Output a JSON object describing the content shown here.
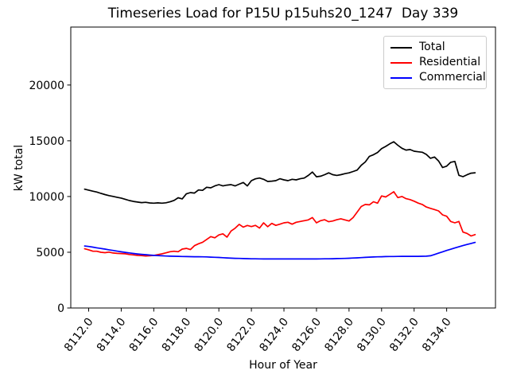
{
  "chart_data": {
    "type": "line",
    "title": "Timeseries Load for P15U p15uhs20_1247  Day 339",
    "xlabel": "Hour of Year",
    "ylabel": "kW total",
    "legend_position": "upper right",
    "grid": false,
    "xlim": [
      8110.9,
      8137.0
    ],
    "ylim": [
      0,
      25200
    ],
    "xticks": [
      8112,
      8114,
      8116,
      8118,
      8120,
      8122,
      8124,
      8126,
      8128,
      8130,
      8132,
      8134
    ],
    "xtick_labels": [
      "8112.0",
      "8114.0",
      "8116.0",
      "8118.0",
      "8120.0",
      "8122.0",
      "8124.0",
      "8126.0",
      "8128.0",
      "8130.0",
      "8132.0",
      "8134.0"
    ],
    "yticks": [
      0,
      5000,
      10000,
      15000,
      20000
    ],
    "ytick_labels": [
      "0",
      "5000",
      "10000",
      "15000",
      "20000"
    ],
    "x_start": 8111.75,
    "x_step": 0.25,
    "n_points": 97,
    "series": [
      {
        "name": "Total",
        "color": "#000000",
        "values": [
          10660,
          10570,
          10480,
          10400,
          10280,
          10170,
          10080,
          10010,
          9930,
          9860,
          9750,
          9640,
          9560,
          9500,
          9450,
          9480,
          9420,
          9400,
          9430,
          9400,
          9440,
          9520,
          9650,
          9890,
          9790,
          10240,
          10350,
          10310,
          10590,
          10550,
          10830,
          10780,
          10950,
          11065,
          10950,
          11020,
          11065,
          10950,
          11110,
          11255,
          10950,
          11420,
          11585,
          11660,
          11540,
          11350,
          11380,
          11420,
          11590,
          11490,
          11420,
          11540,
          11490,
          11590,
          11660,
          11890,
          12195,
          11770,
          11820,
          11960,
          12124,
          11960,
          11890,
          11960,
          12050,
          12120,
          12240,
          12370,
          12800,
          13100,
          13600,
          13750,
          13950,
          14300,
          14490,
          14720,
          14910,
          14600,
          14330,
          14160,
          14210,
          14060,
          14010,
          13970,
          13780,
          13430,
          13545,
          13190,
          12600,
          12720,
          13070,
          13150,
          11900,
          11780,
          11950,
          12090,
          12130
        ]
      },
      {
        "name": "Residential",
        "color": "#ff0000",
        "values": [
          5310,
          5220,
          5100,
          5090,
          5000,
          4960,
          5010,
          4930,
          4900,
          4880,
          4860,
          4800,
          4760,
          4720,
          4700,
          4670,
          4680,
          4720,
          4790,
          4860,
          4950,
          5050,
          5090,
          5050,
          5280,
          5350,
          5240,
          5590,
          5760,
          5900,
          6150,
          6400,
          6300,
          6550,
          6650,
          6350,
          6900,
          7150,
          7500,
          7250,
          7400,
          7300,
          7410,
          7170,
          7640,
          7290,
          7590,
          7410,
          7520,
          7640,
          7690,
          7520,
          7690,
          7760,
          7830,
          7900,
          8110,
          7640,
          7830,
          7920,
          7740,
          7800,
          7920,
          8000,
          7900,
          7800,
          8110,
          8600,
          9100,
          9290,
          9250,
          9530,
          9400,
          10050,
          9960,
          10190,
          10430,
          9900,
          10000,
          9810,
          9720,
          9580,
          9410,
          9290,
          9060,
          8940,
          8830,
          8710,
          8350,
          8230,
          7760,
          7640,
          7760,
          6810,
          6690,
          6460,
          6580
        ]
      },
      {
        "name": "Commercial",
        "color": "#0000ff",
        "values": [
          5560,
          5520,
          5460,
          5400,
          5340,
          5280,
          5220,
          5160,
          5100,
          5040,
          4990,
          4940,
          4890,
          4850,
          4810,
          4780,
          4750,
          4720,
          4700,
          4680,
          4665,
          4650,
          4640,
          4630,
          4620,
          4610,
          4605,
          4600,
          4595,
          4590,
          4580,
          4565,
          4550,
          4530,
          4510,
          4490,
          4470,
          4455,
          4445,
          4435,
          4425,
          4415,
          4410,
          4405,
          4400,
          4400,
          4398,
          4395,
          4395,
          4395,
          4395,
          4398,
          4400,
          4400,
          4400,
          4400,
          4400,
          4400,
          4405,
          4410,
          4415,
          4420,
          4430,
          4440,
          4450,
          4460,
          4480,
          4500,
          4520,
          4540,
          4560,
          4575,
          4590,
          4600,
          4610,
          4618,
          4622,
          4628,
          4630,
          4630,
          4630,
          4630,
          4635,
          4640,
          4650,
          4680,
          4800,
          4920,
          5040,
          5160,
          5270,
          5380,
          5490,
          5600,
          5700,
          5790,
          5880
        ]
      }
    ]
  }
}
